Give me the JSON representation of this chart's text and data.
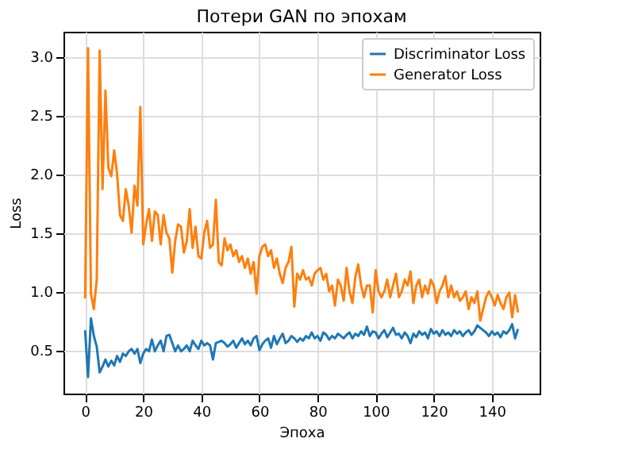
{
  "chart_data": {
    "type": "line",
    "title": "Потери GAN по эпохам",
    "xlabel": "Эпоха",
    "ylabel": "Loss",
    "x": [
      0,
      1,
      2,
      3,
      4,
      5,
      6,
      7,
      8,
      9,
      10,
      11,
      12,
      13,
      14,
      15,
      16,
      17,
      18,
      19,
      20,
      21,
      22,
      23,
      24,
      25,
      26,
      27,
      28,
      29,
      30,
      31,
      32,
      33,
      34,
      35,
      36,
      37,
      38,
      39,
      40,
      41,
      42,
      43,
      44,
      45,
      46,
      47,
      48,
      49,
      50,
      51,
      52,
      53,
      54,
      55,
      56,
      57,
      58,
      59,
      60,
      61,
      62,
      63,
      64,
      65,
      66,
      67,
      68,
      69,
      70,
      71,
      72,
      73,
      74,
      75,
      76,
      77,
      78,
      79,
      80,
      81,
      82,
      83,
      84,
      85,
      86,
      87,
      88,
      89,
      90,
      91,
      92,
      93,
      94,
      95,
      96,
      97,
      98,
      99,
      100,
      101,
      102,
      103,
      104,
      105,
      106,
      107,
      108,
      109,
      110,
      111,
      112,
      113,
      114,
      115,
      116,
      117,
      118,
      119,
      120,
      121,
      122,
      123,
      124,
      125,
      126,
      127,
      128,
      129,
      130,
      131,
      132,
      133,
      134,
      135,
      136,
      137,
      138,
      139,
      140,
      141,
      142,
      143,
      144,
      145,
      146,
      147,
      148,
      149
    ],
    "series": [
      {
        "name": "Discriminator Loss",
        "color": "#1f77b4",
        "values": [
          0.67,
          0.27,
          0.77,
          0.62,
          0.53,
          0.31,
          0.36,
          0.42,
          0.36,
          0.41,
          0.37,
          0.45,
          0.4,
          0.47,
          0.45,
          0.49,
          0.51,
          0.47,
          0.51,
          0.39,
          0.47,
          0.51,
          0.49,
          0.59,
          0.49,
          0.54,
          0.58,
          0.49,
          0.62,
          0.63,
          0.56,
          0.49,
          0.54,
          0.49,
          0.51,
          0.54,
          0.49,
          0.58,
          0.54,
          0.51,
          0.58,
          0.54,
          0.56,
          0.54,
          0.42,
          0.56,
          0.57,
          0.58,
          0.56,
          0.53,
          0.55,
          0.58,
          0.52,
          0.56,
          0.6,
          0.55,
          0.58,
          0.54,
          0.6,
          0.62,
          0.5,
          0.55,
          0.58,
          0.6,
          0.52,
          0.62,
          0.55,
          0.6,
          0.64,
          0.56,
          0.58,
          0.62,
          0.6,
          0.57,
          0.6,
          0.58,
          0.62,
          0.6,
          0.65,
          0.6,
          0.62,
          0.58,
          0.65,
          0.63,
          0.59,
          0.62,
          0.6,
          0.64,
          0.62,
          0.6,
          0.63,
          0.65,
          0.6,
          0.64,
          0.62,
          0.66,
          0.63,
          0.7,
          0.62,
          0.66,
          0.65,
          0.6,
          0.64,
          0.67,
          0.61,
          0.65,
          0.69,
          0.63,
          0.64,
          0.6,
          0.65,
          0.62,
          0.56,
          0.64,
          0.61,
          0.66,
          0.63,
          0.65,
          0.6,
          0.68,
          0.64,
          0.66,
          0.62,
          0.67,
          0.63,
          0.65,
          0.62,
          0.67,
          0.64,
          0.66,
          0.62,
          0.65,
          0.67,
          0.63,
          0.66,
          0.71,
          0.69,
          0.67,
          0.65,
          0.62,
          0.66,
          0.63,
          0.65,
          0.61,
          0.66,
          0.64,
          0.67,
          0.72,
          0.6,
          0.68
        ]
      },
      {
        "name": "Generator Loss",
        "color": "#ff7f0e",
        "values": [
          0.94,
          3.07,
          0.98,
          0.85,
          1.1,
          3.05,
          1.87,
          2.71,
          2.05,
          1.98,
          2.2,
          2.0,
          1.65,
          1.6,
          1.87,
          1.73,
          1.5,
          1.9,
          1.73,
          2.57,
          1.4,
          1.57,
          1.7,
          1.43,
          1.68,
          1.65,
          1.4,
          1.65,
          1.5,
          1.45,
          1.16,
          1.43,
          1.57,
          1.55,
          1.33,
          1.43,
          1.7,
          1.37,
          1.55,
          1.3,
          1.28,
          1.5,
          1.6,
          1.37,
          1.4,
          1.78,
          1.25,
          1.22,
          1.45,
          1.35,
          1.4,
          1.3,
          1.35,
          1.25,
          1.3,
          1.2,
          1.28,
          1.15,
          1.25,
          0.98,
          1.3,
          1.38,
          1.4,
          1.3,
          1.35,
          1.2,
          1.28,
          1.15,
          1.07,
          1.2,
          1.25,
          1.38,
          0.87,
          1.15,
          1.1,
          1.18,
          1.1,
          1.12,
          1.05,
          1.15,
          1.18,
          1.2,
          1.1,
          1.15,
          1.0,
          1.05,
          0.88,
          1.1,
          1.05,
          0.92,
          1.2,
          1.0,
          0.9,
          1.12,
          1.23,
          1.05,
          0.95,
          1.05,
          1.05,
          0.82,
          1.18,
          1.0,
          0.95,
          1.0,
          1.1,
          0.95,
          1.05,
          1.15,
          0.95,
          1.0,
          1.1,
          1.05,
          1.17,
          0.9,
          1.05,
          1.1,
          0.95,
          1.05,
          0.98,
          1.1,
          1.05,
          0.9,
          1.0,
          1.05,
          1.13,
          0.95,
          1.05,
          0.95,
          1.0,
          0.92,
          0.95,
          1.0,
          0.85,
          0.95,
          0.9,
          1.0,
          0.75,
          0.85,
          0.95,
          1.0,
          0.95,
          0.88,
          0.97,
          0.9,
          0.85,
          0.95,
          0.99,
          0.78,
          0.97,
          0.82
        ]
      }
    ],
    "xlim": [
      -7.45,
      156.45
    ],
    "ylim": [
      0.13,
      3.21
    ],
    "xticks": [
      0,
      20,
      40,
      60,
      80,
      100,
      120,
      140
    ],
    "yticks": [
      0.5,
      {
        "value": 1,
        "label": "1.0"
      },
      1.5,
      {
        "value": 2,
        "label": "2.0"
      },
      2.5,
      {
        "value": 3,
        "label": "3.0"
      }
    ],
    "grid": true,
    "legend": "top right",
    "line_style": "solid"
  }
}
